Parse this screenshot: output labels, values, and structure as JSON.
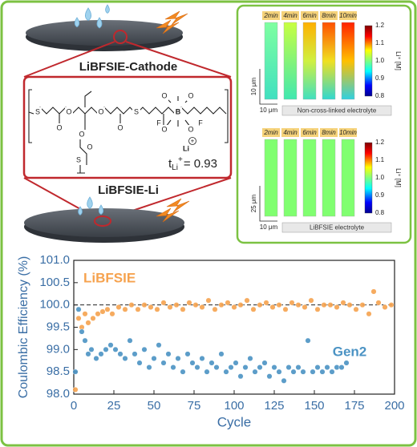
{
  "figure": {
    "cathode_label": "LiBFSIE-Cathode",
    "anode_label": "LiBFSIE-Li",
    "atoms": [
      "S",
      "O",
      "O",
      "O",
      "O",
      "O",
      "O",
      "S",
      "S",
      "F",
      "B",
      "O",
      "O",
      "O",
      "O",
      "F",
      "Li"
    ],
    "ion_charge": "+",
    "t_symbol": "t",
    "t_sub": "Li",
    "t_sup": "+",
    "t_value": "= 0.93",
    "panels": [
      {
        "times": [
          "2min",
          "4min",
          "6min",
          "8min",
          "10min"
        ],
        "colorbar_ticks": [
          "1.2",
          "1.1",
          "1.0",
          "0.9",
          "0.8"
        ],
        "colorbar_label": "Li⁺ [M]",
        "scale_vertical": "10 μm",
        "scale_horizontal": "10 μm",
        "caption": "Non-cross-linked electrolyte"
      },
      {
        "times": [
          "2min",
          "4min",
          "6min",
          "8min",
          "10min"
        ],
        "colorbar_ticks": [
          "1.2",
          "1.1",
          "1.0",
          "0.9",
          "0.8"
        ],
        "colorbar_label": "Li⁺ [M]",
        "scale_vertical": "25 μm",
        "scale_horizontal": "10 μm",
        "caption": "LiBFSIE electrolyte"
      }
    ]
  },
  "chart_data": {
    "type": "scatter",
    "x_label": "Cycle",
    "y_label": "Coulombic Efficiency (%)",
    "xlim": [
      0,
      200
    ],
    "xticks": [
      0,
      25,
      50,
      75,
      100,
      125,
      150,
      175,
      200
    ],
    "ylim": [
      98,
      101
    ],
    "yticks": [
      {
        "value": 98,
        "label": "98.0"
      },
      {
        "value": 98.5,
        "label": "98.5"
      },
      {
        "value": 99,
        "label": "99.0"
      },
      {
        "value": 99.5,
        "label": "99.5"
      },
      {
        "value": 100,
        "label": "100.0"
      },
      {
        "value": 100.5,
        "label": "100.5"
      },
      {
        "value": 101,
        "label": "101.0"
      }
    ],
    "reference_line": 100,
    "series": [
      {
        "name": "LiBFSIE",
        "color": "#f6a24e",
        "x": [
          1,
          3,
          5,
          7,
          9,
          12,
          15,
          18,
          21,
          24,
          28,
          32,
          36,
          40,
          44,
          48,
          52,
          56,
          60,
          64,
          68,
          72,
          76,
          80,
          84,
          88,
          92,
          96,
          100,
          104,
          108,
          112,
          116,
          120,
          124,
          128,
          132,
          136,
          140,
          144,
          148,
          152,
          156,
          160,
          164,
          168,
          172,
          176,
          180,
          184,
          187,
          190,
          194,
          198
        ],
        "values": [
          98.1,
          99.7,
          99.5,
          99.8,
          99.6,
          99.7,
          99.8,
          99.85,
          99.9,
          99.8,
          99.95,
          99.9,
          100.0,
          99.9,
          100.0,
          99.95,
          99.9,
          100.05,
          99.95,
          100.0,
          99.9,
          100.05,
          100.0,
          99.95,
          100.1,
          99.9,
          100.0,
          100.05,
          99.95,
          100.0,
          100.1,
          99.9,
          100.0,
          100.05,
          99.95,
          100.0,
          99.9,
          100.05,
          100.0,
          99.95,
          100.1,
          99.9,
          100.0,
          100.0,
          99.95,
          100.05,
          100.0,
          99.9,
          100.0,
          99.8,
          100.3,
          100.05,
          99.95,
          100.0
        ]
      },
      {
        "name": "Gen2",
        "color": "#4b93c4",
        "x": [
          1,
          3,
          5,
          7,
          9,
          11,
          14,
          17,
          20,
          23,
          26,
          29,
          32,
          35,
          38,
          41,
          44,
          47,
          50,
          53,
          56,
          59,
          62,
          65,
          68,
          71,
          74,
          77,
          80,
          83,
          86,
          89,
          92,
          95,
          98,
          101,
          104,
          107,
          110,
          113,
          116,
          119,
          122,
          125,
          128,
          131,
          134,
          137,
          140,
          143,
          146,
          149,
          152,
          155,
          158,
          161,
          164,
          167,
          170
        ],
        "values": [
          98.5,
          99.9,
          99.4,
          99.2,
          98.9,
          99.0,
          98.8,
          98.9,
          99.0,
          99.1,
          99.0,
          98.9,
          98.8,
          99.2,
          98.9,
          98.7,
          99.0,
          98.6,
          98.8,
          99.1,
          98.7,
          98.9,
          98.6,
          98.8,
          98.5,
          98.9,
          98.7,
          98.6,
          98.8,
          98.5,
          98.7,
          98.6,
          98.9,
          98.5,
          98.6,
          98.7,
          98.4,
          98.6,
          98.8,
          98.5,
          98.6,
          98.7,
          98.4,
          98.6,
          98.5,
          98.3,
          98.6,
          98.5,
          98.6,
          98.5,
          99.2,
          98.5,
          98.6,
          98.5,
          98.6,
          98.5,
          98.6,
          98.6,
          98.7
        ]
      }
    ]
  }
}
